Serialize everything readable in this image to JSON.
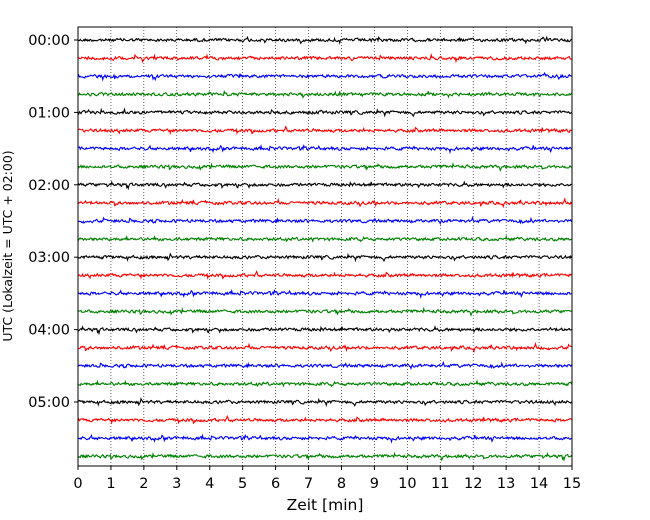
{
  "chart_data": {
    "type": "line",
    "title": "",
    "xlabel": "Zeit  [min]",
    "ylabel": "UTC (Lokalzeit = UTC + 02:00)",
    "xlim": [
      0,
      15
    ],
    "x_ticks": [
      0,
      1,
      2,
      3,
      4,
      5,
      6,
      7,
      8,
      9,
      10,
      11,
      12,
      13,
      14,
      15
    ],
    "y_tick_labels": [
      "00:00",
      "01:00",
      "02:00",
      "03:00",
      "04:00",
      "05:00"
    ],
    "rows_per_hour": 4,
    "row_minutes": 15,
    "row_count": 24,
    "trace_colors": [
      "#000000",
      "#ff0000",
      "#0000ff",
      "#008000"
    ],
    "grid": {
      "vertical": true,
      "style": "dotted"
    },
    "series_description": "Seismogram helicorder: 24 consecutive 15-minute traces, cycling black, red, blue, green"
  }
}
